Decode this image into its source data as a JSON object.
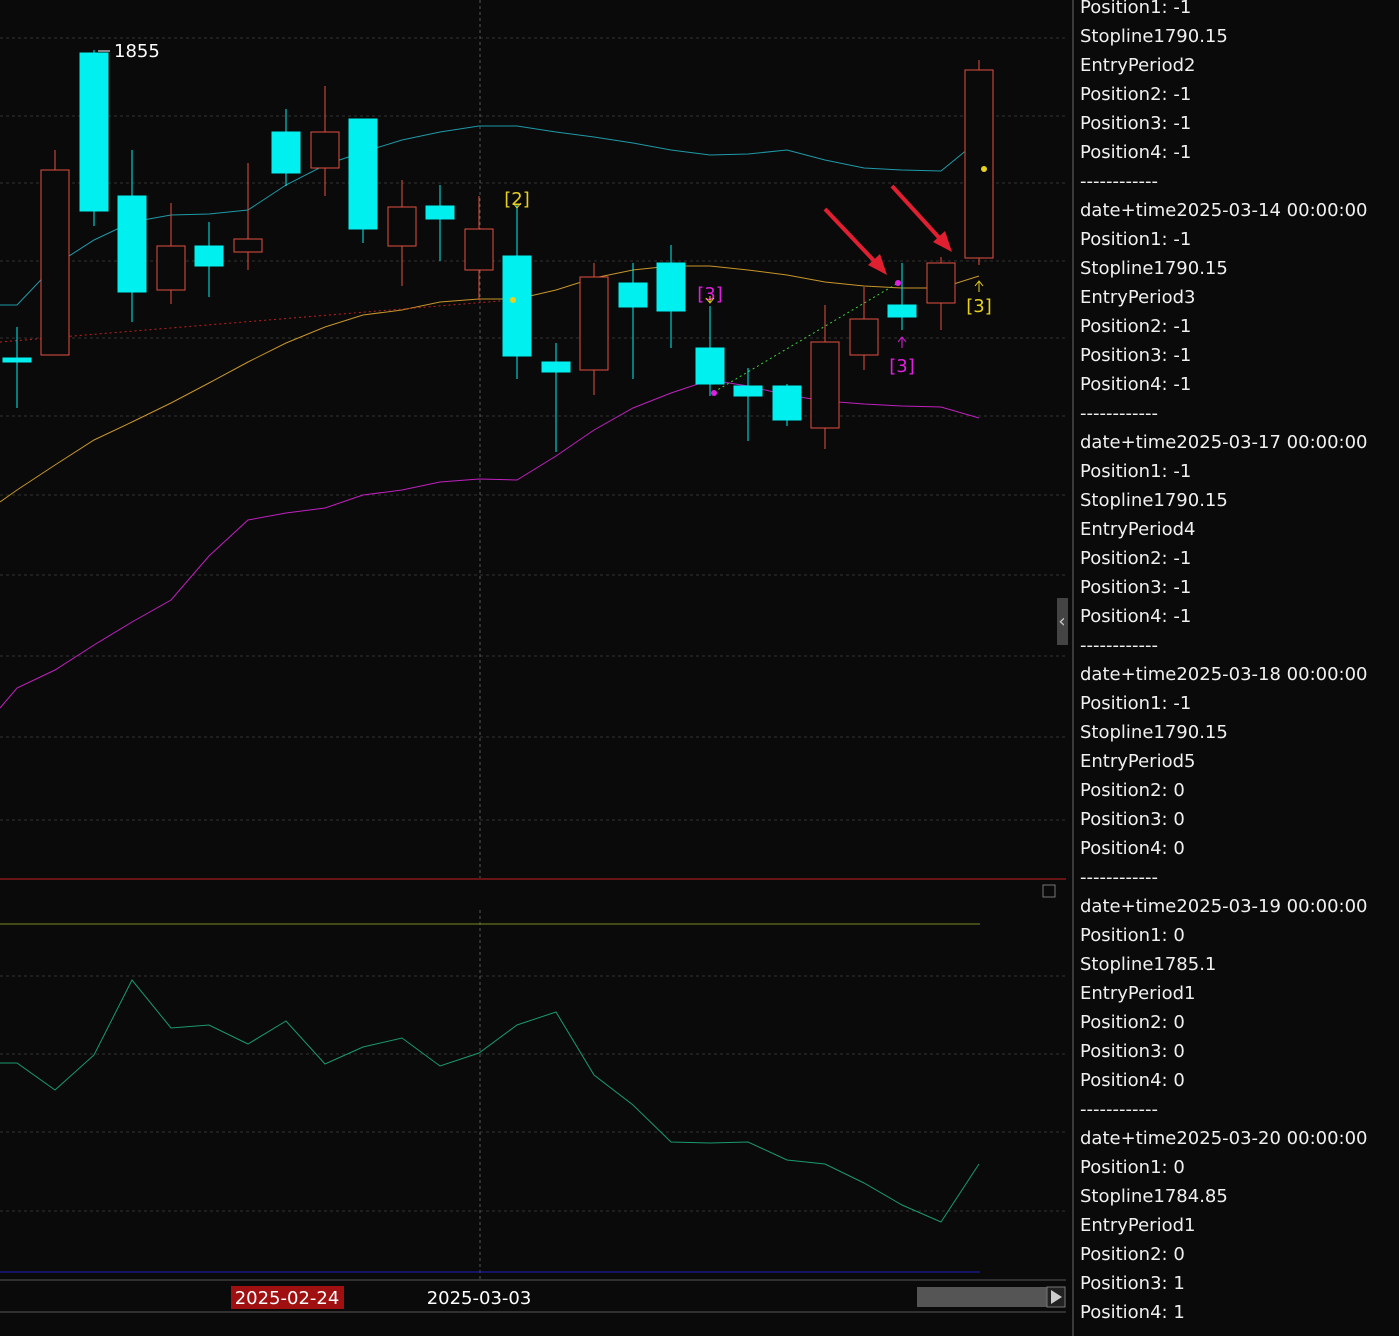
{
  "chart": {
    "high_label": "1855",
    "markers": [
      "[2]",
      "[3]",
      "[3]",
      "[3]"
    ],
    "x_labels": [
      "2025-02-24",
      "2025-03-03"
    ]
  },
  "log": {
    "lines": [
      "Position1: -1",
      "Stopline1790.15",
      "EntryPeriod2",
      "Position2: -1",
      "Position3: -1",
      "Position4: -1",
      "------------",
      "date+time2025-03-14 00:00:00",
      "Position1: -1",
      "Stopline1790.15",
      "EntryPeriod3",
      "Position2: -1",
      "Position3: -1",
      "Position4: -1",
      "------------",
      "date+time2025-03-17 00:00:00",
      "Position1: -1",
      "Stopline1790.15",
      "EntryPeriod4",
      "Position2: -1",
      "Position3: -1",
      "Position4: -1",
      "------------",
      "date+time2025-03-18 00:00:00",
      "Position1: -1",
      "Stopline1790.15",
      "EntryPeriod5",
      "Position2: 0",
      "Position3: 0",
      "Position4: 0",
      "------------",
      "date+time2025-03-19 00:00:00",
      "Position1: 0",
      "Stopline1785.1",
      "EntryPeriod1",
      "Position2: 0",
      "Position3: 0",
      "Position4: 0",
      "------------",
      "date+time2025-03-20 00:00:00",
      "Position1: 0",
      "Stopline1784.85",
      "EntryPeriod1",
      "Position2: 0",
      "Position3: 1",
      "Position4: 1"
    ]
  }
}
